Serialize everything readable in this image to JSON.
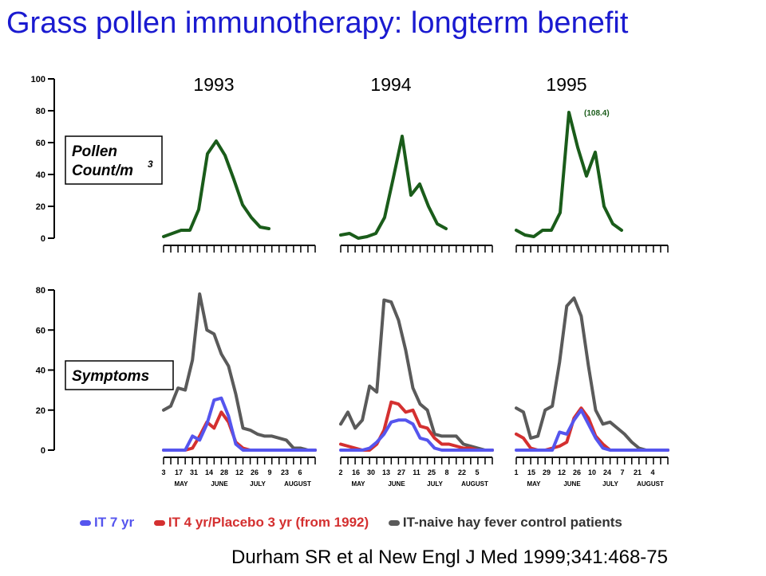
{
  "title": "Grass pollen immunotherapy: longterm benefit",
  "citation": "Durham SR et al New Engl J Med 1999;341:468-75",
  "colors": {
    "pollen": "#1a5c1a",
    "it7": "#5555ee",
    "it4": "#d43030",
    "naive": "#5a5a5a",
    "title": "#1a1ad0"
  },
  "chart_data": [
    {
      "type": "line",
      "panel": "pollen",
      "label_lines": [
        "Pollen",
        "Count/m",
        "3"
      ],
      "ylim": [
        0,
        100
      ],
      "yticks": [
        "0",
        "20",
        "40",
        "60",
        "80",
        "100"
      ],
      "groups": [
        {
          "year": "1993",
          "series": [
            {
              "name": "pollen",
              "values": [
                1,
                3,
                5,
                5,
                18,
                53,
                61,
                52,
                37,
                21,
                13,
                7,
                6
              ]
            }
          ]
        },
        {
          "year": "1994",
          "series": [
            {
              "name": "pollen",
              "values": [
                2,
                3,
                0,
                1,
                3,
                13,
                38,
                64,
                27,
                34,
                20,
                9,
                6
              ]
            }
          ]
        },
        {
          "year": "1995",
          "annotation": "(108.4)",
          "series": [
            {
              "name": "pollen",
              "values": [
                5,
                2,
                1,
                5,
                5,
                16,
                79,
                57,
                39,
                54,
                20,
                9,
                5
              ]
            }
          ]
        }
      ]
    },
    {
      "type": "line",
      "panel": "symptoms",
      "label_lines": [
        "Symptoms"
      ],
      "ylim": [
        0,
        80
      ],
      "yticks": [
        "0",
        "20",
        "40",
        "60",
        "80"
      ],
      "groups": [
        {
          "x_labels": [
            "3",
            "17",
            "31",
            "14",
            "28",
            "12",
            "26",
            "9",
            "23",
            "6"
          ],
          "months": [
            "MAY",
            "JUNE",
            "JULY",
            "AUGUST"
          ],
          "series": [
            {
              "name": "it7",
              "values": [
                0,
                0,
                0,
                0,
                7,
                5,
                13,
                25,
                26,
                17,
                3,
                0,
                0,
                0,
                0,
                0,
                0,
                0,
                0,
                0,
                0,
                0
              ]
            },
            {
              "name": "it4",
              "values": [
                0,
                0,
                0,
                0,
                1,
                7,
                14,
                11,
                19,
                14,
                4,
                1,
                0,
                0,
                0,
                0,
                0,
                0,
                0,
                0,
                0,
                0
              ]
            },
            {
              "name": "naive",
              "values": [
                20,
                22,
                31,
                30,
                45,
                78,
                60,
                58,
                48,
                42,
                28,
                11,
                10,
                8,
                7,
                7,
                6,
                5,
                1,
                1,
                0,
                0
              ]
            }
          ]
        },
        {
          "x_labels": [
            "2",
            "16",
            "30",
            "13",
            "27",
            "11",
            "25",
            "8",
            "22",
            "5"
          ],
          "months": [
            "MAY",
            "JUNE",
            "JULY",
            "AUGUST"
          ],
          "series": [
            {
              "name": "it7",
              "values": [
                0,
                0,
                0,
                0,
                1,
                4,
                8,
                14,
                15,
                15,
                13,
                6,
                5,
                1,
                0,
                0,
                0,
                0,
                0,
                0,
                0,
                0
              ]
            },
            {
              "name": "it4",
              "values": [
                3,
                2,
                1,
                0,
                0,
                3,
                10,
                24,
                23,
                19,
                20,
                12,
                11,
                6,
                3,
                3,
                2,
                1,
                1,
                0,
                0,
                0
              ]
            },
            {
              "name": "naive",
              "values": [
                13,
                19,
                11,
                15,
                32,
                29,
                75,
                74,
                65,
                50,
                31,
                23,
                20,
                8,
                7,
                7,
                7,
                3,
                2,
                1,
                0,
                0
              ]
            }
          ]
        },
        {
          "x_labels": [
            "1",
            "15",
            "29",
            "12",
            "26",
            "10",
            "24",
            "7",
            "21",
            "4"
          ],
          "months": [
            "MAY",
            "JUNE",
            "JULY",
            "AUGUST"
          ],
          "series": [
            {
              "name": "it7",
              "values": [
                0,
                0,
                0,
                0,
                0,
                0,
                9,
                8,
                15,
                20,
                13,
                6,
                1,
                0,
                0,
                0,
                0,
                0,
                0,
                0,
                0,
                0
              ]
            },
            {
              "name": "it4",
              "values": [
                8,
                6,
                1,
                0,
                0,
                1,
                2,
                4,
                16,
                21,
                16,
                7,
                3,
                0,
                0,
                0,
                0,
                0,
                0,
                0,
                0,
                0
              ]
            },
            {
              "name": "naive",
              "values": [
                21,
                19,
                6,
                7,
                20,
                22,
                44,
                72,
                76,
                67,
                42,
                20,
                13,
                14,
                11,
                8,
                4,
                1,
                0,
                0,
                0,
                0
              ]
            }
          ]
        }
      ]
    }
  ],
  "legend": [
    {
      "key": "it7",
      "label": "IT 7 yr"
    },
    {
      "key": "it4",
      "label": "IT 4 yr/Placebo 3 yr (from 1992)"
    },
    {
      "key": "naive",
      "label": "IT-naive hay fever control patients"
    }
  ]
}
